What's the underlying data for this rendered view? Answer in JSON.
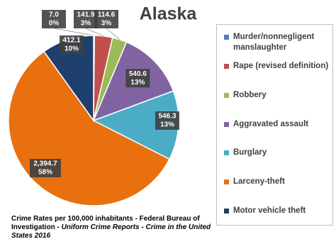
{
  "chart_data": {
    "type": "pie",
    "title": "Alaska",
    "categories": [
      "Murder/nonnegligent manslaughter",
      "Rape (revised definition)",
      "Robbery",
      "Aggravated assault",
      "Burglary",
      "Larceny-theft",
      "Motor vehicle theft"
    ],
    "values": [
      7.0,
      141.9,
      114.6,
      540.6,
      546.3,
      2394.7,
      412.1
    ],
    "value_labels": [
      "7.0",
      "141.9",
      "114.6",
      "540.6",
      "546.3",
      "2,394.7",
      "412.1"
    ],
    "percent_labels": [
      "0%",
      "3%",
      "3%",
      "13%",
      "13%",
      "58%",
      "10%"
    ],
    "colors": [
      "#4a7ebb",
      "#c0504d",
      "#9bbb59",
      "#8064a2",
      "#4bacc6",
      "#e8700f",
      "#1f3f6e"
    ],
    "legend": "right",
    "source": {
      "text": "Crime Rates per 100,000 inhabitants - Federal Bureau of Investigation -",
      "italic": "Uniform Crime Reports - Crime in the United States",
      "year": "2016"
    }
  }
}
